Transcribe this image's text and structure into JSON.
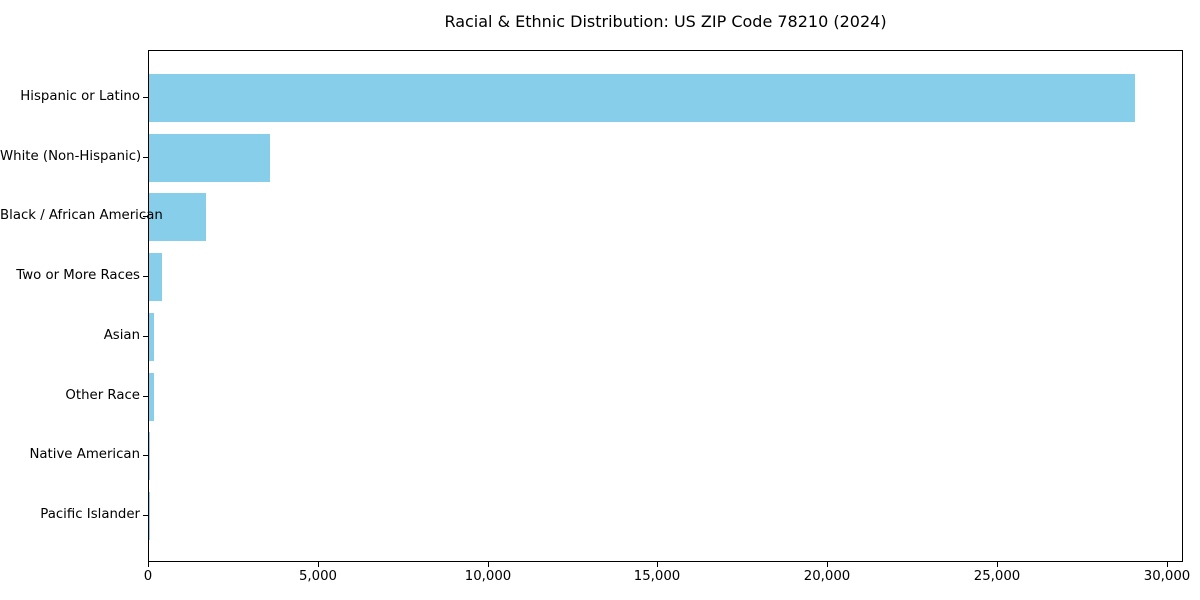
{
  "chart_data": {
    "type": "bar",
    "orientation": "horizontal",
    "title": "Racial & Ethnic Distribution: US ZIP Code 78210 (2024)",
    "categories": [
      "Hispanic or Latino",
      "White (Non-Hispanic)",
      "Black / African American",
      "Two or More Races",
      "Asian",
      "Other Race",
      "Native American",
      "Pacific Islander"
    ],
    "values": [
      29030,
      3570,
      1680,
      370,
      150,
      140,
      30,
      10
    ],
    "xlabel": "",
    "ylabel": "",
    "xlim": [
      0,
      30481
    ],
    "xticks": [
      0,
      5000,
      10000,
      15000,
      20000,
      25000,
      30000
    ],
    "xtick_labels": [
      "0",
      "5,000",
      "10,000",
      "15,000",
      "20,000",
      "25,000",
      "30,000"
    ],
    "bar_color": "#87CEEB",
    "axis_color": "#000000",
    "background": "#FFFFFF",
    "grid": false,
    "legend": null
  }
}
